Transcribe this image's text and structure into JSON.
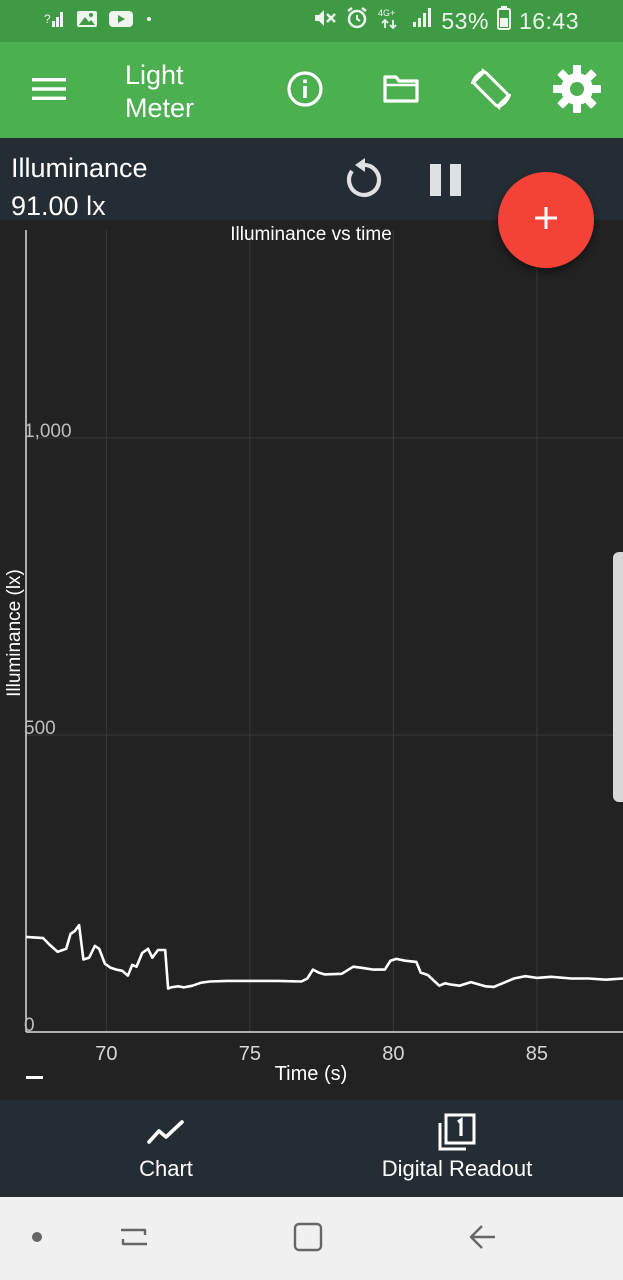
{
  "status_bar": {
    "battery_percent": "53%",
    "time": "16:43",
    "network": "4G+",
    "left_icons": [
      "signal-question-icon",
      "image-icon",
      "youtube-icon",
      "dot-icon"
    ],
    "right_icons": [
      "mute-icon",
      "alarm-icon",
      "network-icon",
      "signal-icon",
      "battery-icon"
    ]
  },
  "app_bar": {
    "title": "Light Meter",
    "icons": [
      "menu-icon",
      "info-icon",
      "folder-icon",
      "rotate-screen-icon",
      "settings-icon"
    ]
  },
  "readout": {
    "label": "Illuminance",
    "value": "91.00 lx",
    "controls": [
      "reset-icon",
      "pause-icon"
    ]
  },
  "fab": {
    "icon": "add-icon",
    "symbol": "+"
  },
  "chart_data": {
    "type": "line",
    "title": "Illuminance vs time",
    "xlabel": "Time (s)",
    "ylabel": "Illuminance (lx)",
    "xlim": [
      67.2,
      88.0
    ],
    "ylim": [
      0,
      1350
    ],
    "x_ticks": [
      70,
      75,
      80,
      85
    ],
    "x_tick_labels": [
      "70",
      "75",
      "80",
      "85"
    ],
    "y_ticks": [
      0,
      500,
      1000
    ],
    "y_tick_labels": [
      "0",
      "500",
      "1,000"
    ],
    "grid": true,
    "series": [
      {
        "color": "#ffffff",
        "x": [
          67.2,
          67.8,
          68.0,
          68.3,
          68.6,
          68.75,
          68.9,
          69.05,
          69.2,
          69.4,
          69.6,
          69.75,
          69.95,
          70.15,
          70.35,
          70.55,
          70.75,
          70.9,
          71.05,
          71.25,
          71.45,
          71.6,
          71.8,
          72.05,
          72.15,
          72.25,
          72.5,
          72.7,
          73.0,
          73.3,
          73.6,
          74.2,
          75.0,
          76.0,
          76.8,
          77.0,
          77.2,
          77.4,
          77.6,
          78.2,
          78.6,
          78.9,
          79.3,
          79.7,
          79.9,
          80.1,
          80.4,
          80.8,
          80.95,
          81.2,
          81.6,
          81.8,
          82.0,
          82.3,
          82.7,
          83.2,
          83.5,
          83.8,
          84.2,
          84.6,
          85.0,
          85.5,
          86.2,
          86.8,
          87.4,
          88.0
        ],
        "y": [
          160,
          158,
          148,
          135,
          140,
          165,
          170,
          180,
          122,
          125,
          145,
          140,
          115,
          108,
          105,
          103,
          95,
          113,
          110,
          133,
          140,
          125,
          138,
          138,
          73,
          75,
          77,
          75,
          78,
          83,
          85,
          86,
          86,
          86,
          85,
          90,
          105,
          100,
          97,
          98,
          110,
          108,
          105,
          105,
          120,
          123,
          120,
          118,
          100,
          96,
          78,
          82,
          80,
          78,
          84,
          77,
          76,
          82,
          90,
          94,
          91,
          93,
          90,
          90,
          88,
          90
        ]
      }
    ]
  },
  "bottom_nav": {
    "items": [
      {
        "label": "Chart",
        "icon": "chart-line-icon"
      },
      {
        "label": "Digital Readout",
        "icon": "digital-readout-icon"
      }
    ]
  },
  "system_nav": {
    "icons": [
      "dot-icon",
      "recent-apps-icon",
      "home-icon",
      "back-icon"
    ]
  }
}
